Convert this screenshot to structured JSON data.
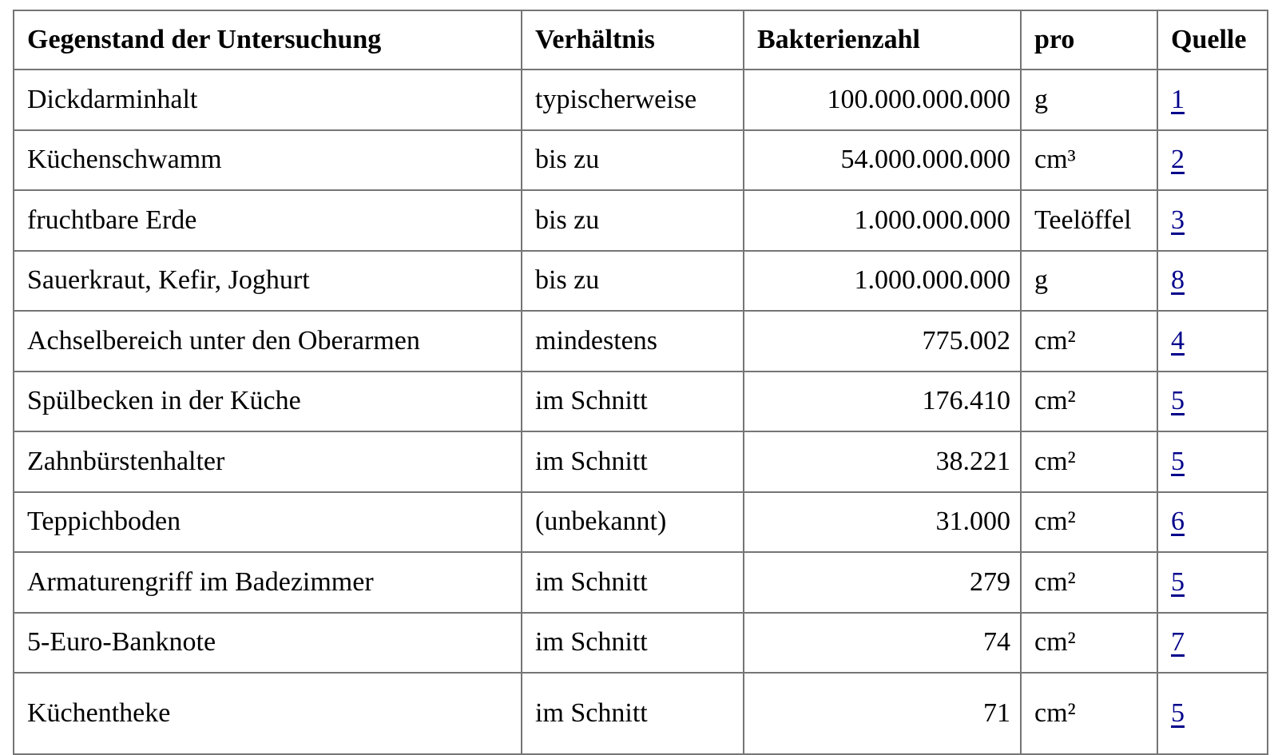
{
  "table": {
    "headers": [
      "Gegenstand der Untersuchung",
      "Verhältnis",
      "Bakterienzahl",
      "pro",
      "Quelle"
    ],
    "rows": [
      {
        "gegenstand": "Dickdarminhalt",
        "verhaeltnis": "typischerweise",
        "bakterienzahl": "100.000.000.000",
        "pro": "g",
        "quelle": "1"
      },
      {
        "gegenstand": "Küchenschwamm",
        "verhaeltnis": "bis zu",
        "bakterienzahl": "54.000.000.000",
        "pro": "cm³",
        "quelle": "2"
      },
      {
        "gegenstand": "fruchtbare Erde",
        "verhaeltnis": "bis zu",
        "bakterienzahl": "1.000.000.000",
        "pro": "Teelöffel",
        "quelle": "3"
      },
      {
        "gegenstand": "Sauerkraut, Kefir, Joghurt",
        "verhaeltnis": "bis zu",
        "bakterienzahl": "1.000.000.000",
        "pro": "g",
        "quelle": "8"
      },
      {
        "gegenstand": "Achselbereich unter den Oberarmen",
        "verhaeltnis": "mindestens",
        "bakterienzahl": "775.002",
        "pro": "cm²",
        "quelle": "4"
      },
      {
        "gegenstand": "Spülbecken in der Küche",
        "verhaeltnis": "im Schnitt",
        "bakterienzahl": "176.410",
        "pro": "cm²",
        "quelle": "5"
      },
      {
        "gegenstand": "Zahnbürstenhalter",
        "verhaeltnis": "im Schnitt",
        "bakterienzahl": "38.221",
        "pro": "cm²",
        "quelle": "5"
      },
      {
        "gegenstand": "Teppichboden",
        "verhaeltnis": "(unbekannt)",
        "bakterienzahl": "31.000",
        "pro": "cm²",
        "quelle": "6"
      },
      {
        "gegenstand": "Armaturengriff im Badezimmer",
        "verhaeltnis": "im Schnitt",
        "bakterienzahl": "279",
        "pro": "cm²",
        "quelle": "5"
      },
      {
        "gegenstand": "5-Euro-Banknote",
        "verhaeltnis": "im Schnitt",
        "bakterienzahl": "74",
        "pro": "cm²",
        "quelle": "7"
      },
      {
        "gegenstand": "Küchentheke",
        "verhaeltnis": "im Schnitt",
        "bakterienzahl": "71",
        "pro": "cm²",
        "quelle": "5"
      }
    ]
  },
  "colors": {
    "link": "#00008b",
    "border": "#757575",
    "text": "#000000",
    "background": "#ffffff"
  }
}
